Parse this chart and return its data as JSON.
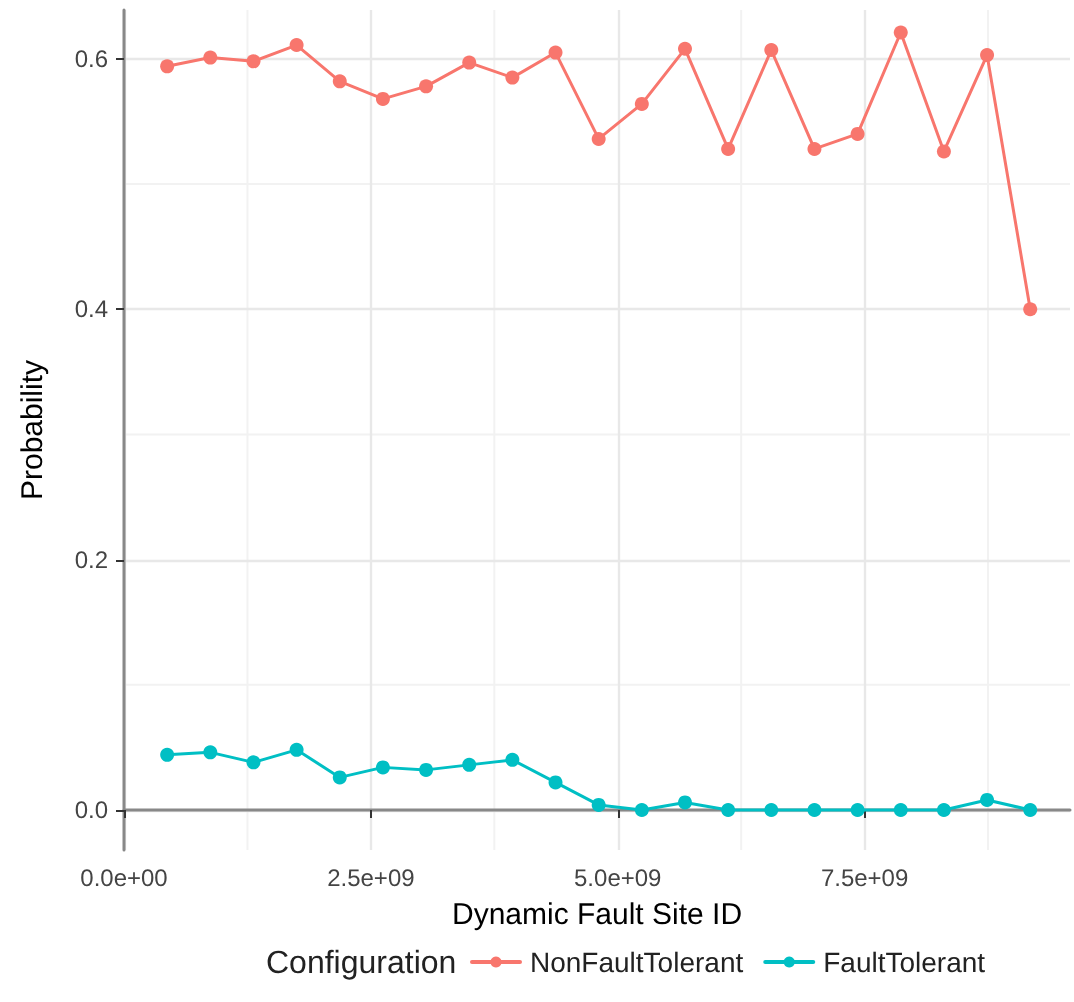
{
  "chart_data": {
    "type": "line",
    "xlabel": "Dynamic Fault Site ID",
    "ylabel": "Probability",
    "legend_title": "Configuration",
    "legend": "bottom",
    "grid": true,
    "marker": "circle",
    "line_style": "solid",
    "x": [
      437000000.0,
      874000000.0,
      1311000000.0,
      1748000000.0,
      2185000000.0,
      2622000000.0,
      3059000000.0,
      3496000000.0,
      3933000000.0,
      4370000000.0,
      4807000000.0,
      5244000000.0,
      5681000000.0,
      6118000000.0,
      6555000000.0,
      6992000000.0,
      7429000000.0,
      7866000000.0,
      8303000000.0,
      8740000000.0,
      9177000000.0
    ],
    "xlim": [
      0,
      9580000000.0
    ],
    "xticks": [
      {
        "value": 0,
        "label": "0.0e+00"
      },
      {
        "value": 2500000000.0,
        "label": "2.5e+09"
      },
      {
        "value": 5000000000.0,
        "label": "5.0e+09"
      },
      {
        "value": 7500000000.0,
        "label": "7.5e+09"
      }
    ],
    "ylim": [
      -0.032,
      0.639
    ],
    "yticks": [
      {
        "value": 0,
        "label": "0.0"
      },
      {
        "value": 0.2,
        "label": "0.2"
      },
      {
        "value": 0.4,
        "label": "0.4"
      },
      {
        "value": 0.6,
        "label": "0.6"
      }
    ],
    "series": [
      {
        "name": "NonFaultTolerant",
        "color": "#f8766d",
        "values": [
          0.594,
          0.601,
          0.598,
          0.611,
          0.582,
          0.568,
          0.578,
          0.597,
          0.585,
          0.605,
          0.536,
          0.564,
          0.608,
          0.528,
          0.607,
          0.528,
          0.54,
          0.621,
          0.526,
          0.603,
          0.4
        ]
      },
      {
        "name": "FaultTolerant",
        "color": "#00bfc4",
        "values": [
          0.044,
          0.046,
          0.038,
          0.048,
          0.026,
          0.034,
          0.032,
          0.036,
          0.04,
          0.022,
          0.004,
          0.0,
          0.006,
          0.0,
          0.0,
          0.0,
          0.0,
          0.0,
          0.0,
          0.008,
          0.0
        ]
      }
    ]
  }
}
